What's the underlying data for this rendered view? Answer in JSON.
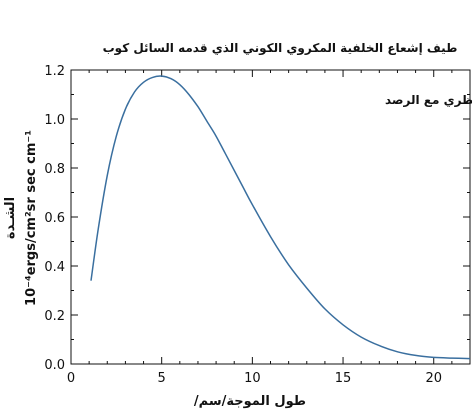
{
  "chart_data": {
    "type": "line",
    "title": "طيف إشعاع الخلفية المكروي الكوني الذي قدمه السائل كوب",
    "annotation": "التوافق النظري مع الرصد",
    "xlabel": "طول الموجة/سم/",
    "ylabel_line1": "الشـدة",
    "ylabel_line2": "10⁻⁴ergs/cm²sr sec cm⁻¹",
    "xlim": [
      0,
      22
    ],
    "ylim": [
      0,
      1.2
    ],
    "x_ticks": [
      "0",
      "5",
      "10",
      "15",
      "20"
    ],
    "y_ticks": [
      "0.0",
      "0.2",
      "0.4",
      "0.6",
      "0.8",
      "1.0",
      "1.2"
    ],
    "line_color": "#3a6f9f",
    "grid": false,
    "series": [
      {
        "x": [
          1.1,
          1.5,
          2.0,
          2.5,
          3.0,
          3.5,
          4.0,
          4.5,
          5.0,
          5.5,
          6.0,
          6.5,
          7.0,
          7.5,
          8.0,
          8.5,
          9.0,
          9.5,
          10.0,
          11.0,
          12.0,
          13.0,
          14.0,
          15.0,
          16.0,
          17.0,
          18.0,
          19.0,
          20.0,
          21.0,
          22.0
        ],
        "y": [
          0.34,
          0.55,
          0.77,
          0.93,
          1.04,
          1.11,
          1.15,
          1.17,
          1.175,
          1.165,
          1.14,
          1.1,
          1.05,
          0.99,
          0.93,
          0.86,
          0.79,
          0.72,
          0.65,
          0.52,
          0.405,
          0.31,
          0.225,
          0.16,
          0.11,
          0.075,
          0.05,
          0.035,
          0.027,
          0.024,
          0.022
        ]
      }
    ]
  }
}
